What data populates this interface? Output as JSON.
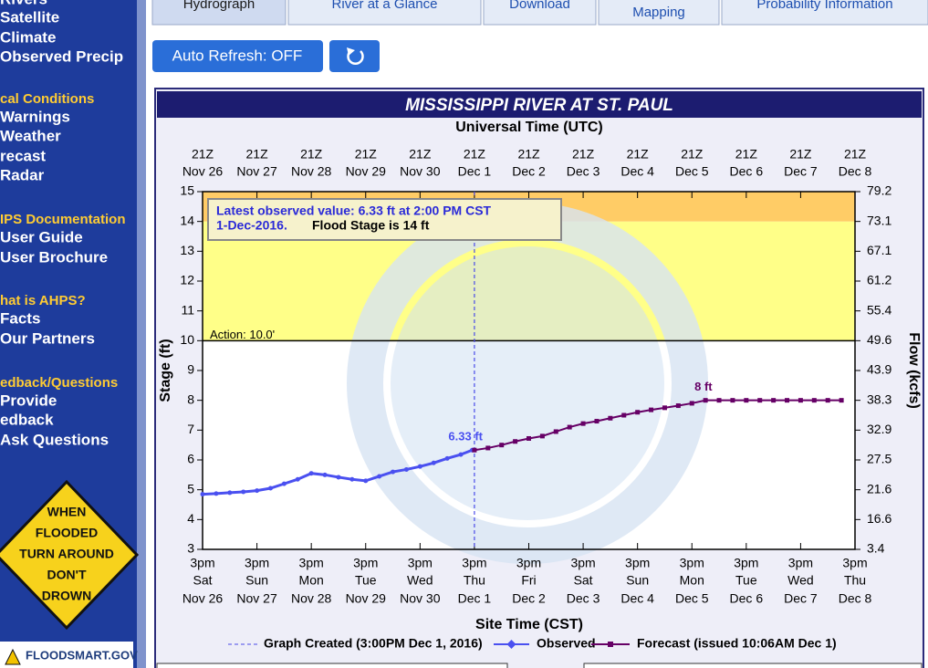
{
  "sidebar": {
    "sections": [
      {
        "links": [
          "Rivers",
          "Satellite",
          "Climate",
          "Observed Precip"
        ]
      },
      {
        "header": "cal Conditions",
        "links": [
          "Warnings",
          "Weather",
          "recast",
          "Radar"
        ]
      },
      {
        "header": "IPS Documentation",
        "links": [
          "User Guide",
          "User Brochure"
        ]
      },
      {
        "header": "hat is AHPS?",
        "links": [
          "Facts",
          "Our Partners"
        ]
      },
      {
        "header": "edback/Questions",
        "links": [
          "Provide",
          "edback",
          "Ask Questions"
        ]
      }
    ],
    "sign": [
      "WHEN",
      "FLOODED",
      "TURN AROUND",
      "DON'T",
      "DROWN"
    ],
    "banner": "FLOODSMART.GOV"
  },
  "tabs": [
    "Hydrograph",
    "River at a Glance",
    "Download",
    "Inundation Mapping",
    "Probability Information"
  ],
  "buttons": {
    "refresh_toggle": "Auto Refresh: OFF"
  },
  "chart_data": {
    "type": "line",
    "title": "MISSISSIPPI RIVER AT ST. PAUL",
    "top_axis_title": "Universal Time (UTC)",
    "x_axis_title": "Site Time (CST)",
    "y_axis_title": "Stage (ft)",
    "y2_axis_title": "Flow (kcfs)",
    "xlim": [
      "2016-11-26 15:00",
      "2016-12-08 15:00"
    ],
    "xticks": [
      {
        "value": "2016-11-26 15:00",
        "utc": "21Z",
        "local": "3pm",
        "weekday": "Sat",
        "date": "Nov 26"
      },
      {
        "value": "2016-11-27 15:00",
        "utc": "21Z",
        "local": "3pm",
        "weekday": "Sun",
        "date": "Nov 27"
      },
      {
        "value": "2016-11-28 15:00",
        "utc": "21Z",
        "local": "3pm",
        "weekday": "Mon",
        "date": "Nov 28"
      },
      {
        "value": "2016-11-29 15:00",
        "utc": "21Z",
        "local": "3pm",
        "weekday": "Tue",
        "date": "Nov 29"
      },
      {
        "value": "2016-11-30 15:00",
        "utc": "21Z",
        "local": "3pm",
        "weekday": "Wed",
        "date": "Nov 30"
      },
      {
        "value": "2016-12-01 15:00",
        "utc": "21Z",
        "local": "3pm",
        "weekday": "Thu",
        "date": "Dec 1"
      },
      {
        "value": "2016-12-02 15:00",
        "utc": "21Z",
        "local": "3pm",
        "weekday": "Fri",
        "date": "Dec 2"
      },
      {
        "value": "2016-12-03 15:00",
        "utc": "21Z",
        "local": "3pm",
        "weekday": "Sat",
        "date": "Dec 3"
      },
      {
        "value": "2016-12-04 15:00",
        "utc": "21Z",
        "local": "3pm",
        "weekday": "Sun",
        "date": "Dec 4"
      },
      {
        "value": "2016-12-05 15:00",
        "utc": "21Z",
        "local": "3pm",
        "weekday": "Mon",
        "date": "Dec 5"
      },
      {
        "value": "2016-12-06 15:00",
        "utc": "21Z",
        "local": "3pm",
        "weekday": "Tue",
        "date": "Dec 6"
      },
      {
        "value": "2016-12-07 15:00",
        "utc": "21Z",
        "local": "3pm",
        "weekday": "Wed",
        "date": "Dec 7"
      },
      {
        "value": "2016-12-08 15:00",
        "utc": "21Z",
        "local": "3pm",
        "weekday": "Thu",
        "date": "Dec 8"
      }
    ],
    "ylim": [
      3,
      15
    ],
    "yticks": [
      3,
      4,
      5,
      6,
      7,
      8,
      9,
      10,
      11,
      12,
      13,
      14,
      15
    ],
    "flow_ticks": [
      {
        "stage": 15,
        "flow": 79.2
      },
      {
        "stage": 14,
        "flow": 73.1
      },
      {
        "stage": 13,
        "flow": 67.1
      },
      {
        "stage": 12,
        "flow": 61.2
      },
      {
        "stage": 11,
        "flow": 55.4
      },
      {
        "stage": 10,
        "flow": 49.6
      },
      {
        "stage": 9,
        "flow": 43.9
      },
      {
        "stage": 8,
        "flow": 38.3
      },
      {
        "stage": 7,
        "flow": 32.9
      },
      {
        "stage": 6,
        "flow": 27.5
      },
      {
        "stage": 5,
        "flow": 21.6
      },
      {
        "stage": 4,
        "flow": 16.6
      },
      {
        "stage": 3,
        "flow": 3.4
      }
    ],
    "bands": [
      {
        "from": 10,
        "to": 14,
        "color": "#ffff88"
      },
      {
        "from": 14,
        "to": 15,
        "color": "#ffcc66"
      }
    ],
    "action": {
      "label": "Action: 10.0'",
      "value": 10
    },
    "latest": {
      "line1": "Latest observed value: 6.33 ft at 2:00 PM CST",
      "line2": "1-Dec-2016.",
      "flood": "Flood Stage is 14 ft"
    },
    "created": {
      "label": "Graph Created (3:00PM Dec 1, 2016)",
      "x": "2016-12-01 15:00",
      "color": "#4a4ae8"
    },
    "series": [
      {
        "name": "Observed",
        "color": "#4a50f0",
        "x": [
          "2016-11-26 15:00",
          "2016-11-26 21:00",
          "2016-11-27 03:00",
          "2016-11-27 09:00",
          "2016-11-27 15:00",
          "2016-11-27 21:00",
          "2016-11-28 03:00",
          "2016-11-28 09:00",
          "2016-11-28 15:00",
          "2016-11-28 21:00",
          "2016-11-29 03:00",
          "2016-11-29 09:00",
          "2016-11-29 15:00",
          "2016-11-29 21:00",
          "2016-11-30 03:00",
          "2016-11-30 09:00",
          "2016-11-30 15:00",
          "2016-11-30 21:00",
          "2016-12-01 03:00",
          "2016-12-01 09:00",
          "2016-12-01 14:00"
        ],
        "values": [
          4.85,
          4.87,
          4.9,
          4.93,
          4.97,
          5.05,
          5.2,
          5.35,
          5.55,
          5.5,
          5.42,
          5.35,
          5.3,
          5.45,
          5.6,
          5.68,
          5.78,
          5.9,
          6.05,
          6.18,
          6.33
        ],
        "value_labels": [
          null,
          null,
          null,
          null,
          null,
          null,
          null,
          null,
          null,
          null,
          null,
          null,
          null,
          null,
          null,
          null,
          null,
          null,
          null,
          null,
          "6.33 ft"
        ]
      },
      {
        "name": "Forecast (issued 10:06AM Dec 1)",
        "color": "#660066",
        "x": [
          "2016-12-01 15:00",
          "2016-12-01 21:00",
          "2016-12-02 03:00",
          "2016-12-02 09:00",
          "2016-12-02 15:00",
          "2016-12-02 21:00",
          "2016-12-03 03:00",
          "2016-12-03 09:00",
          "2016-12-03 15:00",
          "2016-12-03 21:00",
          "2016-12-04 03:00",
          "2016-12-04 09:00",
          "2016-12-04 15:00",
          "2016-12-04 21:00",
          "2016-12-05 03:00",
          "2016-12-05 09:00",
          "2016-12-05 15:00",
          "2016-12-05 21:00",
          "2016-12-06 03:00",
          "2016-12-06 09:00",
          "2016-12-06 15:00",
          "2016-12-06 21:00",
          "2016-12-07 03:00",
          "2016-12-07 09:00",
          "2016-12-07 15:00",
          "2016-12-07 21:00",
          "2016-12-08 03:00",
          "2016-12-08 09:00"
        ],
        "values": [
          6.33,
          6.4,
          6.5,
          6.62,
          6.72,
          6.8,
          6.95,
          7.1,
          7.22,
          7.3,
          7.4,
          7.5,
          7.6,
          7.68,
          7.75,
          7.82,
          7.9,
          8,
          8,
          8,
          8,
          8,
          8,
          8,
          8,
          8,
          8,
          8
        ],
        "value_labels": [
          null,
          null,
          null,
          null,
          null,
          null,
          null,
          null,
          null,
          null,
          null,
          null,
          null,
          null,
          null,
          null,
          null,
          "8 ft",
          null,
          null,
          null,
          null,
          null,
          null,
          null,
          null,
          null,
          null
        ]
      }
    ]
  }
}
